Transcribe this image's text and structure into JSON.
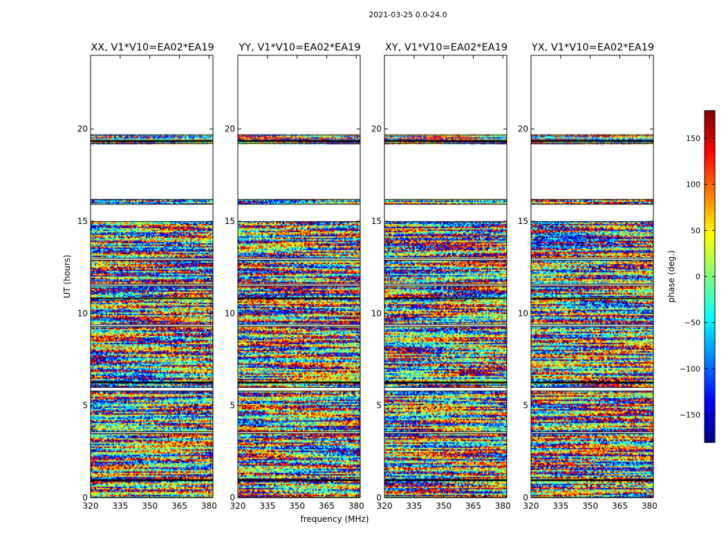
{
  "chart_data": {
    "type": "heatmap",
    "suptitle": "2021-03-25 0.0-24.0",
    "xlabel": "frequency (MHz)",
    "ylabel": "UT (hours)",
    "xlim": [
      320,
      382
    ],
    "ylim": [
      0,
      24
    ],
    "xticks": [
      320,
      335,
      350,
      365,
      380
    ],
    "yticks": [
      0,
      5,
      10,
      15,
      20
    ],
    "panels": [
      {
        "title": "XX, V1*V10=EA02*EA19",
        "pol": "XX"
      },
      {
        "title": "YY, V1*V10=EA02*EA19",
        "pol": "YY"
      },
      {
        "title": "XY, V1*V10=EA02*EA19",
        "pol": "XY"
      },
      {
        "title": "YX, V1*V10=EA02*EA19",
        "pol": "YX"
      }
    ],
    "colorbar": {
      "label": "phase (deg.)",
      "range": [
        -180,
        180
      ],
      "ticks": [
        -150,
        -100,
        -50,
        0,
        50,
        100,
        150
      ],
      "colormap": "jet"
    },
    "data_coverage_ut_hours": [
      [
        0.0,
        15.0
      ],
      [
        15.9,
        16.2
      ],
      [
        19.2,
        19.7
      ]
    ],
    "data_gaps_ut_hours": [
      [
        3.5,
        3.6
      ],
      [
        5.8,
        6.0
      ],
      [
        9.3,
        9.4
      ],
      [
        11.5,
        11.6
      ],
      [
        12.9,
        13.0
      ]
    ]
  }
}
